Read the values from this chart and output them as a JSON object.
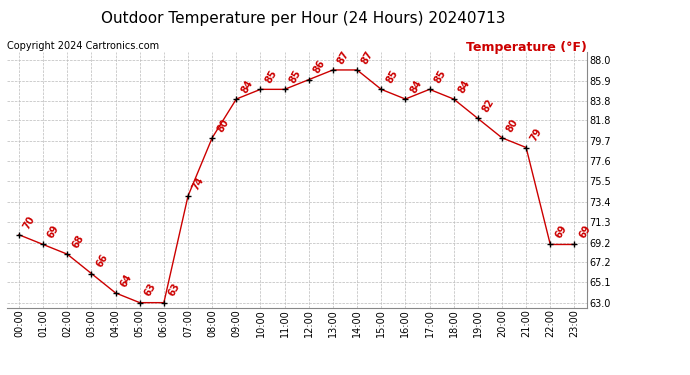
{
  "title": "Outdoor Temperature per Hour (24 Hours) 20240713",
  "copyright": "Copyright 2024 Cartronics.com",
  "ylabel": "Temperature (°F)",
  "hours": [
    0,
    1,
    2,
    3,
    4,
    5,
    6,
    7,
    8,
    9,
    10,
    11,
    12,
    13,
    14,
    15,
    16,
    17,
    18,
    19,
    20,
    21,
    22,
    23
  ],
  "temps": [
    70,
    69,
    68,
    66,
    64,
    63,
    63,
    74,
    80,
    84,
    85,
    85,
    86,
    87,
    87,
    85,
    84,
    85,
    84,
    82,
    80,
    79,
    69,
    69
  ],
  "xlabels": [
    "00:00",
    "01:00",
    "02:00",
    "03:00",
    "04:00",
    "05:00",
    "06:00",
    "07:00",
    "08:00",
    "09:00",
    "10:00",
    "11:00",
    "12:00",
    "13:00",
    "14:00",
    "15:00",
    "16:00",
    "17:00",
    "18:00",
    "19:00",
    "20:00",
    "21:00",
    "22:00",
    "23:00"
  ],
  "ytick_vals": [
    63.0,
    65.1,
    67.2,
    69.2,
    71.3,
    73.4,
    75.5,
    77.6,
    79.7,
    81.8,
    83.8,
    85.9,
    88.0
  ],
  "ytick_labels": [
    "63.0",
    "65.1",
    "67.2",
    "69.2",
    "71.3",
    "73.4",
    "75.5",
    "77.6",
    "79.7",
    "81.8",
    "83.8",
    "85.9",
    "88.0"
  ],
  "ylim": [
    62.5,
    88.8
  ],
  "line_color": "#cc0000",
  "marker_color": "#000000",
  "label_color": "#cc0000",
  "grid_color": "#bbbbbb",
  "bg_color": "#ffffff",
  "title_fontsize": 11,
  "copyright_fontsize": 7,
  "ylabel_fontsize": 9,
  "tick_fontsize": 7,
  "label_fontsize": 7
}
